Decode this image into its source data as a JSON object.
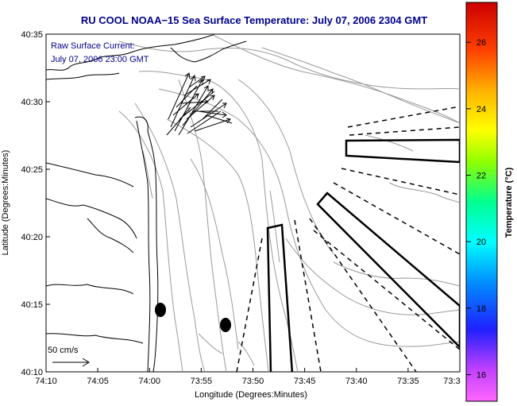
{
  "title": "RU COOL  NOAA−15  Sea Surface Temperature:  July 07, 2006 2304 GMT",
  "annotation": {
    "line1": "Raw Surface Current:",
    "line2": "July 07, 2006 23:00 GMT"
  },
  "scale_label": "50 cm/s",
  "axes": {
    "xlabel": "Longitude (Degrees:Minutes)",
    "ylabel": "Latitude (Degrees:Minutes)",
    "x_ticks": [
      "74:10",
      "74:05",
      "74:00",
      "73:55",
      "73:50",
      "73:45",
      "73:40",
      "73:35",
      "73:3"
    ],
    "y_ticks": [
      "40:35",
      "40:30",
      "40:25",
      "40:20",
      "40:15",
      "40:10"
    ]
  },
  "colorbar": {
    "label": "Temperature (°C)",
    "ticks": [
      "26",
      "24",
      "22",
      "20",
      "18",
      "16"
    ],
    "tick_values": [
      26,
      24,
      22,
      20,
      18,
      16
    ],
    "range": [
      15.2,
      27.2
    ]
  },
  "colors": {
    "title": "#00008b",
    "contour": "#9a9a9a",
    "coast": "#000000"
  },
  "features": {
    "markers": 2,
    "survey_boxes": 3,
    "current_vectors": "cluster of arrows"
  }
}
